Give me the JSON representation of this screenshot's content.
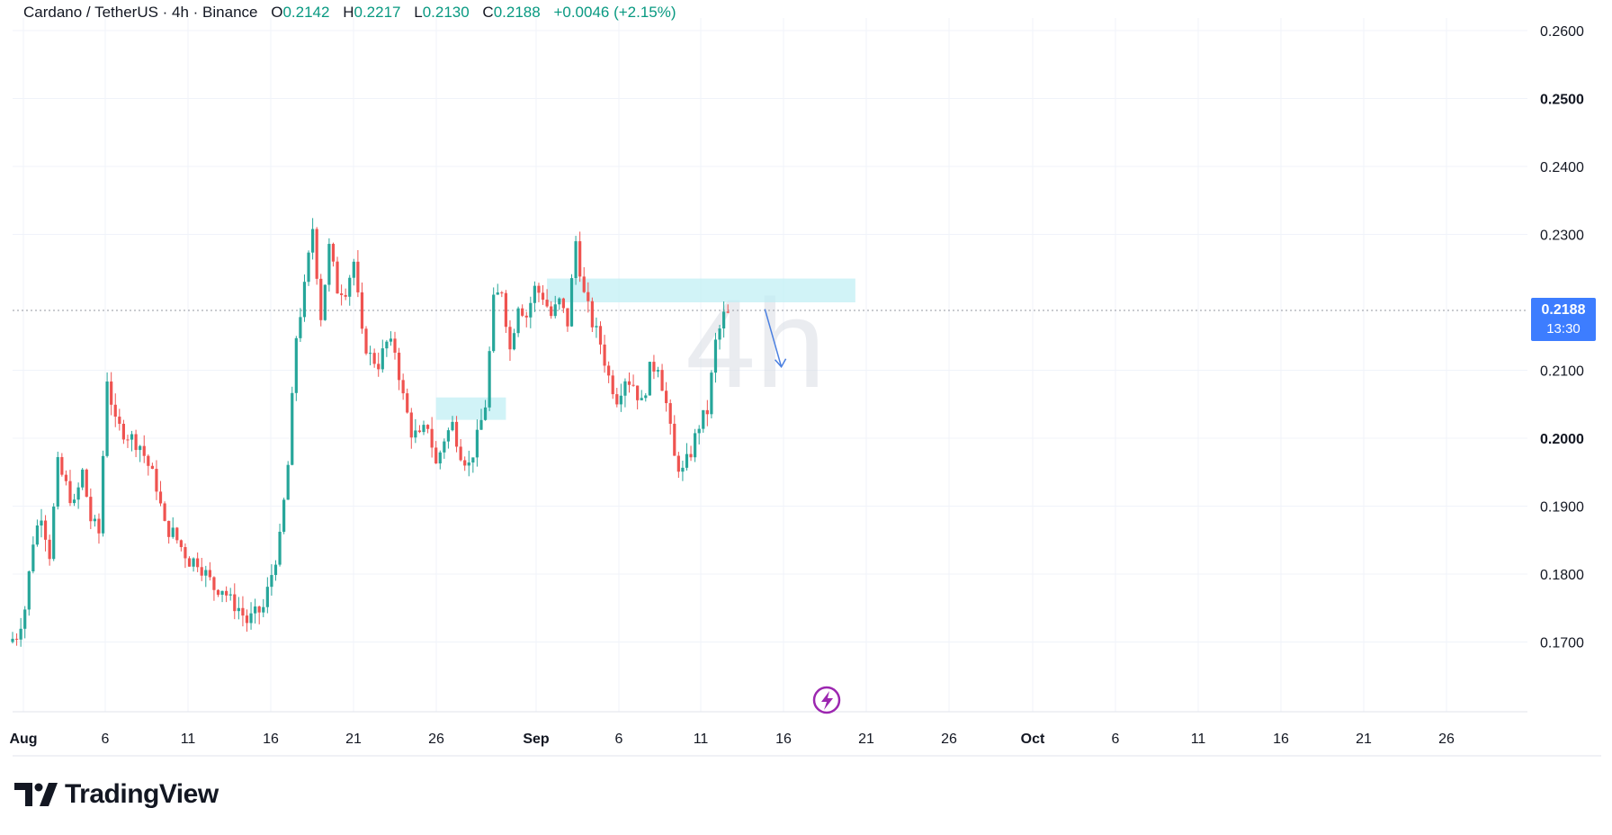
{
  "legend": {
    "symbol": "Cardano / TetherUS · 4h · Binance",
    "open_key": "O",
    "open": "0.2142",
    "high_key": "H",
    "high": "0.2217",
    "low_key": "L",
    "low": "0.2130",
    "close_key": "C",
    "close": "0.2188",
    "change": "+0.0046 (+2.15%)"
  },
  "watermark": "4h",
  "last_price": {
    "price": "0.2188",
    "countdown": "13:30"
  },
  "brand": {
    "name": "TradingView"
  },
  "colors": {
    "up": "#26a69a",
    "down": "#ef5350",
    "zone": "#bdeef4",
    "arrow": "#4a7fe0",
    "tag": "#3d7dff",
    "event": "#9c27b0"
  },
  "chart_data": {
    "type": "candlestick",
    "title": "Cardano / TetherUS · 4h · Binance",
    "y_axis": {
      "range": [
        0.16,
        0.261
      ],
      "ticks": [
        "0.2600",
        "0.2500",
        "0.2400",
        "0.2300",
        "0.2100",
        "0.2000",
        "0.1900",
        "0.1800",
        "0.1700"
      ]
    },
    "x_axis": {
      "ticks": [
        "Aug",
        "6",
        "11",
        "16",
        "21",
        "26",
        "Sep",
        "6",
        "11",
        "16",
        "21",
        "26",
        "Oct",
        "6",
        "11",
        "16",
        "21",
        "26"
      ]
    },
    "grid": true,
    "series": [
      {
        "name": "price",
        "approx_path": [
          [
            0,
            0.17
          ],
          [
            2,
            0.171
          ],
          [
            4,
            0.175
          ],
          [
            6,
            0.185
          ],
          [
            8,
            0.189
          ],
          [
            10,
            0.183
          ],
          [
            12,
            0.196
          ],
          [
            14,
            0.193
          ],
          [
            16,
            0.19
          ],
          [
            18,
            0.195
          ],
          [
            20,
            0.188
          ],
          [
            22,
            0.186
          ],
          [
            24,
            0.209
          ],
          [
            26,
            0.202
          ],
          [
            28,
            0.201
          ],
          [
            30,
            0.2
          ],
          [
            32,
            0.199
          ],
          [
            34,
            0.196
          ],
          [
            36,
            0.193
          ],
          [
            38,
            0.187
          ],
          [
            40,
            0.186
          ],
          [
            42,
            0.184
          ],
          [
            44,
            0.182
          ],
          [
            46,
            0.182
          ],
          [
            48,
            0.18
          ],
          [
            50,
            0.178
          ],
          [
            52,
            0.178
          ],
          [
            54,
            0.176
          ],
          [
            56,
            0.175
          ],
          [
            58,
            0.173
          ],
          [
            60,
            0.174
          ],
          [
            62,
            0.175
          ],
          [
            64,
            0.18
          ],
          [
            66,
            0.185
          ],
          [
            68,
            0.196
          ],
          [
            70,
            0.215
          ],
          [
            72,
            0.222
          ],
          [
            74,
            0.231
          ],
          [
            76,
            0.218
          ],
          [
            78,
            0.228
          ],
          [
            80,
            0.222
          ],
          [
            82,
            0.222
          ],
          [
            84,
            0.226
          ],
          [
            86,
            0.215
          ],
          [
            88,
            0.212
          ],
          [
            90,
            0.211
          ],
          [
            92,
            0.214
          ],
          [
            94,
            0.213
          ],
          [
            96,
            0.206
          ],
          [
            98,
            0.201
          ],
          [
            100,
            0.2
          ],
          [
            102,
            0.202
          ],
          [
            104,
            0.196
          ],
          [
            106,
            0.2
          ],
          [
            108,
            0.202
          ],
          [
            110,
            0.198
          ],
          [
            112,
            0.196
          ],
          [
            114,
            0.2
          ],
          [
            116,
            0.205
          ],
          [
            118,
            0.22
          ],
          [
            120,
            0.222
          ],
          [
            122,
            0.213
          ],
          [
            124,
            0.22
          ],
          [
            126,
            0.218
          ],
          [
            128,
            0.222
          ],
          [
            130,
            0.221
          ],
          [
            132,
            0.218
          ],
          [
            134,
            0.22
          ],
          [
            136,
            0.217
          ],
          [
            138,
            0.229
          ],
          [
            140,
            0.221
          ],
          [
            142,
            0.217
          ],
          [
            144,
            0.214
          ],
          [
            146,
            0.209
          ],
          [
            148,
            0.206
          ],
          [
            150,
            0.209
          ],
          [
            152,
            0.208
          ],
          [
            154,
            0.205
          ],
          [
            156,
            0.21
          ],
          [
            158,
            0.211
          ],
          [
            160,
            0.205
          ],
          [
            162,
            0.197
          ],
          [
            164,
            0.195
          ],
          [
            166,
            0.198
          ],
          [
            168,
            0.202
          ],
          [
            170,
            0.204
          ],
          [
            172,
            0.214
          ],
          [
            174,
            0.218
          ]
        ]
      }
    ],
    "zones": [
      {
        "from": 130,
        "to": 205,
        "low": 0.22,
        "high": 0.2235
      },
      {
        "from": 103,
        "to": 120,
        "low": 0.2027,
        "high": 0.206
      }
    ],
    "projection_arrow": {
      "from": [
        183,
        0.219
      ],
      "to": [
        187,
        0.2105
      ]
    },
    "last_price_line": 0.2188
  }
}
